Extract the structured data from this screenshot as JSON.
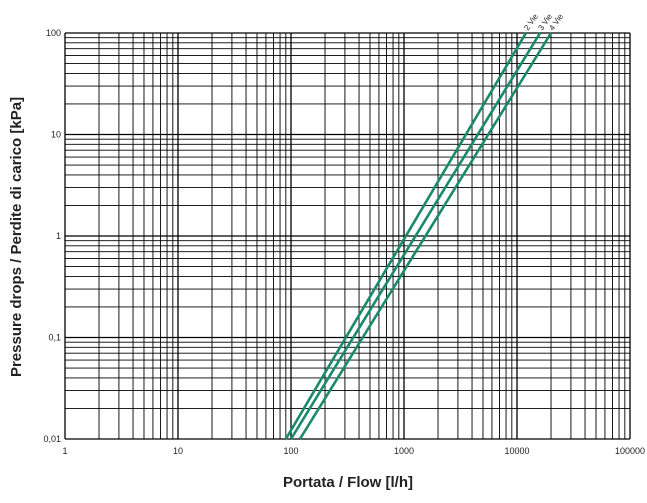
{
  "chart_data": {
    "type": "line",
    "title": "",
    "xlabel": "Portata / Flow [l/h]",
    "ylabel": "Pressure drops / Perdite di carico [kPa]",
    "x_scale": "log",
    "y_scale": "log",
    "xlim": [
      1,
      100000
    ],
    "ylim": [
      0.01,
      100
    ],
    "grid": true,
    "x_ticks": [
      1,
      10,
      100,
      1000,
      10000,
      100000
    ],
    "x_tick_labels": [
      "1",
      "10",
      "100",
      "1000",
      "10000",
      "100000"
    ],
    "y_ticks": [
      0.01,
      0.1,
      1,
      10,
      100
    ],
    "y_tick_labels": [
      "0,01",
      "0,1",
      "1",
      "10",
      "100"
    ],
    "series_color": "#1a8a6a",
    "grid_color": "#000000",
    "series": [
      {
        "name": "2 Vie",
        "x": [
          90,
          12000
        ],
        "y": [
          0.01,
          100
        ]
      },
      {
        "name": "3 Vie",
        "x": [
          100,
          16000
        ],
        "y": [
          0.01,
          100
        ]
      },
      {
        "name": "4 Vie",
        "x": [
          120,
          20000
        ],
        "y": [
          0.01,
          100
        ]
      }
    ]
  }
}
